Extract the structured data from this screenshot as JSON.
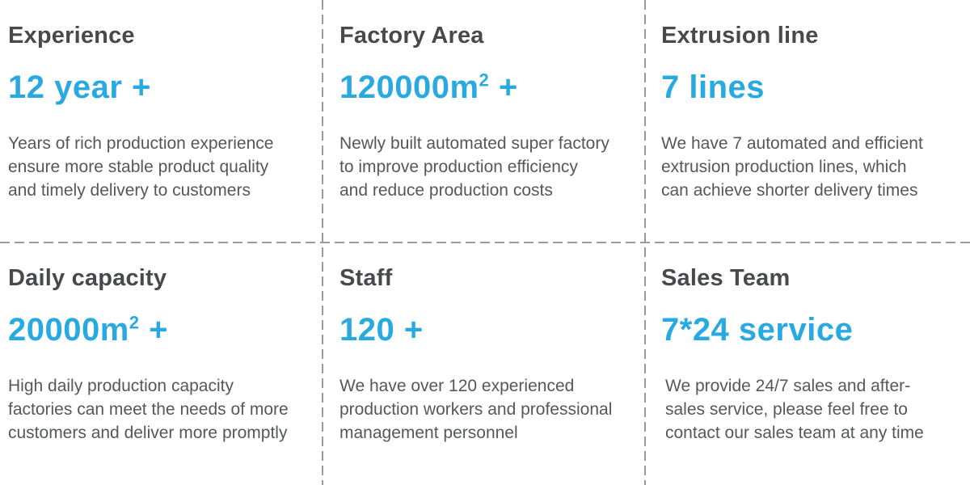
{
  "theme": {
    "accent_blue": "#29a9e2",
    "title_color": "#47494d",
    "body_color": "#55575a",
    "dash_color": "#9a9a9a"
  },
  "cards": [
    {
      "title": "Experience",
      "value": "12 year +",
      "value_sup": "",
      "value_post": "",
      "desc": [
        "Years of rich production experience",
        "ensure more stable product quality",
        "and timely delivery to customers"
      ]
    },
    {
      "title": "Factory Area",
      "value": "120000m",
      "value_sup": "2",
      "value_post": " +",
      "desc": [
        "Newly built automated super factory",
        "to improve production efficiency",
        "and reduce production costs"
      ]
    },
    {
      "title": "Extrusion line",
      "value": "7 lines",
      "value_sup": "",
      "value_post": "",
      "desc": [
        "We have 7 automated and efficient",
        "extrusion production lines, which",
        "can achieve shorter delivery times"
      ]
    },
    {
      "title": "Daily capacity",
      "value": "20000m",
      "value_sup": "2",
      "value_post": " +",
      "desc": [
        "High daily production capacity",
        "factories can meet the needs of more",
        "customers and deliver more promptly"
      ]
    },
    {
      "title": "Staff",
      "value": "120 +",
      "value_sup": "",
      "value_post": "",
      "desc": [
        "We have over 120 experienced",
        "production workers and professional",
        "management personnel"
      ]
    },
    {
      "title": "Sales Team",
      "value": "7*24 service",
      "value_sup": "",
      "value_post": "",
      "desc": [
        "We provide 24/7 sales and after-",
        "sales service, please feel free to",
        "contact our sales team at any time"
      ]
    }
  ]
}
